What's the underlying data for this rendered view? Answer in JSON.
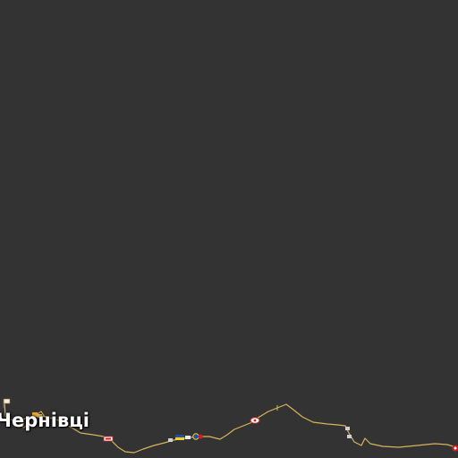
{
  "map": {
    "background": "#333333",
    "road_color": "#d8b45a",
    "flag_blue": "#1f4fb3",
    "flag_yellow": "#f4d21a",
    "route_shield_color": "#cc1f1f",
    "city": {
      "name": "Чернівці"
    },
    "icons": [
      "poi-flag-icon",
      "town-marker-icon",
      "route-shield-icon",
      "border-crossing-icon",
      "checkpoint-icon"
    ]
  }
}
